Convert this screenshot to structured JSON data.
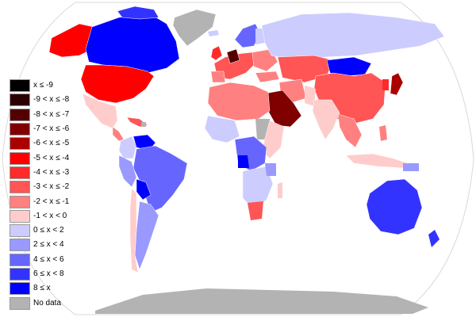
{
  "legend": {
    "items": [
      {
        "label": "x ≤ -9",
        "color": "#000000"
      },
      {
        "label": "-9 < x ≤ -8",
        "color": "#2b0000"
      },
      {
        "label": "-8 < x ≤ -7",
        "color": "#550000"
      },
      {
        "label": "-7 < x ≤ -6",
        "color": "#800000"
      },
      {
        "label": "-6 < x ≤ -5",
        "color": "#aa0000"
      },
      {
        "label": "-5 < x ≤ -4",
        "color": "#ff0000"
      },
      {
        "label": "-4 < x ≤ -3",
        "color": "#ff2a2a"
      },
      {
        "label": "-3 < x ≤ -2",
        "color": "#ff5555"
      },
      {
        "label": "-2 < x ≤ -1",
        "color": "#ff8080"
      },
      {
        "label": "-1 < x < 0",
        "color": "#ffcccc"
      },
      {
        "label": "0 ≤ x < 2",
        "color": "#ccccff"
      },
      {
        "label": "2 ≤ x < 4",
        "color": "#9999ff"
      },
      {
        "label": "4 ≤ x < 6",
        "color": "#6666ff"
      },
      {
        "label": "6 ≤ x < 8",
        "color": "#3333ff"
      },
      {
        "label": "8 ≤ x",
        "color": "#0000ff"
      },
      {
        "label": "No data",
        "color": "#b3b3b3"
      }
    ]
  },
  "colors": {
    "ocean": "#ffffff",
    "outline": "#d8d8d8",
    "no_data": "#b3b3b3"
  }
}
